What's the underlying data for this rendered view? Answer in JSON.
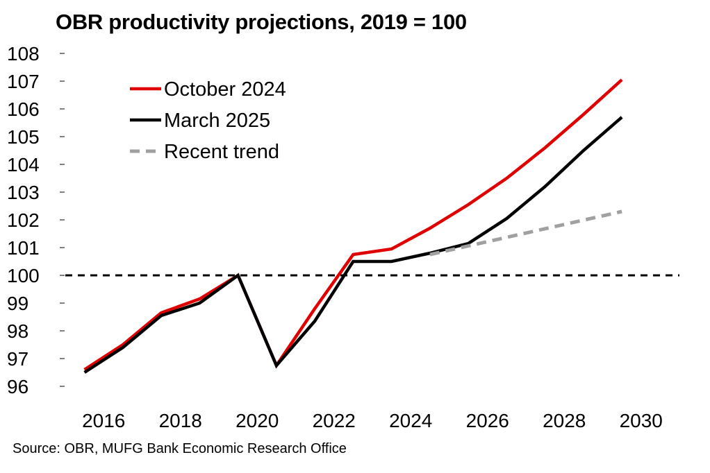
{
  "chart_data": {
    "type": "line",
    "title": "OBR productivity projections, 2019 = 100",
    "xlabel": "",
    "ylabel": "",
    "ylim": [
      96,
      108
    ],
    "yticks": [
      "96",
      "97",
      "98",
      "99",
      "100",
      "101",
      "102",
      "103",
      "104",
      "105",
      "106",
      "107",
      "108"
    ],
    "xticks": [
      "2016",
      "2018",
      "2020",
      "2022",
      "2024",
      "2026",
      "2028",
      "2030"
    ],
    "xlim": [
      2015,
      2031
    ],
    "reference_line": {
      "y": 100,
      "style": "dashed",
      "color": "#000000"
    },
    "series": [
      {
        "name": "October 2024",
        "color": "#e00000",
        "style": "solid",
        "x": [
          2015.5,
          2016.5,
          2017.5,
          2018.5,
          2019.5,
          2020.5,
          2021.5,
          2022.5,
          2023.5,
          2024.5,
          2025.5,
          2026.5,
          2027.5,
          2028.5,
          2029.5
        ],
        "values": [
          96.6,
          97.5,
          98.65,
          99.15,
          100.0,
          96.75,
          98.8,
          100.75,
          100.95,
          101.7,
          102.55,
          103.5,
          104.6,
          105.8,
          107.05
        ]
      },
      {
        "name": "March 2025",
        "color": "#000000",
        "style": "solid",
        "x": [
          2015.5,
          2016.5,
          2017.5,
          2018.5,
          2019.5,
          2020.5,
          2021.5,
          2022.5,
          2023.5,
          2024.5,
          2025.5,
          2026.5,
          2027.5,
          2028.5,
          2029.5
        ],
        "values": [
          96.5,
          97.4,
          98.55,
          99.0,
          100.0,
          96.75,
          98.35,
          100.5,
          100.5,
          100.8,
          101.15,
          102.05,
          103.2,
          104.5,
          105.7
        ]
      },
      {
        "name": "Recent trend",
        "color": "#a0a0a0",
        "style": "dashed",
        "x": [
          2024.5,
          2029.5
        ],
        "values": [
          100.75,
          102.3
        ]
      }
    ],
    "legend": {
      "placement": "top-left"
    }
  },
  "source": "Source: OBR, MUFG Bank Economic Research Office"
}
